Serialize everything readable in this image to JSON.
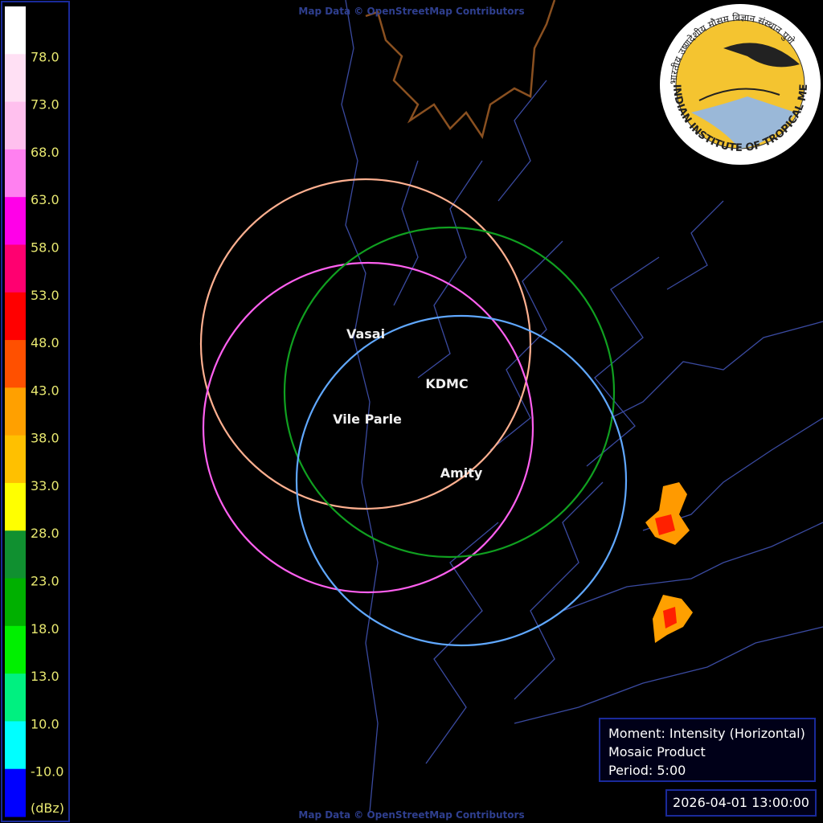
{
  "attribution_top": "Map Data © OpenStreetMap Contributors",
  "attribution_bottom": "Map Data © OpenStreetMap Contributors",
  "legend": {
    "colors": [
      "#ffffff",
      "#ffe0f4",
      "#ffc0ee",
      "#ff80f0",
      "#ff00e8",
      "#ff0070",
      "#ff0000",
      "#ff5000",
      "#ffa000",
      "#ffc000",
      "#ffff00",
      "#109030",
      "#00b000",
      "#00f000",
      "#00f080",
      "#00ffff",
      "#0000ff"
    ],
    "labels": [
      "78.0",
      "73.0",
      "68.0",
      "63.0",
      "58.0",
      "53.0",
      "48.0",
      "43.0",
      "38.0",
      "33.0",
      "28.0",
      "23.0",
      "18.0",
      "13.0",
      "10.0",
      "-10.0"
    ],
    "unit": "(dBz)"
  },
  "sites": [
    "Vasai",
    "KDMC",
    "Vile Parle",
    "Amity"
  ],
  "info": [
    "Moment: Intensity (Horizontal)",
    "Mosaic Product",
    "Period: 5:00"
  ],
  "timestamp": "2026-04-01 13:00:00",
  "logo": {
    "english": "INDIAN INSTITUTE OF TROPICAL METEOROLOGY PUNE",
    "hindi": "भारतीय उष्णदेशीय मौसम विज्ञान संस्थान पुणे"
  }
}
